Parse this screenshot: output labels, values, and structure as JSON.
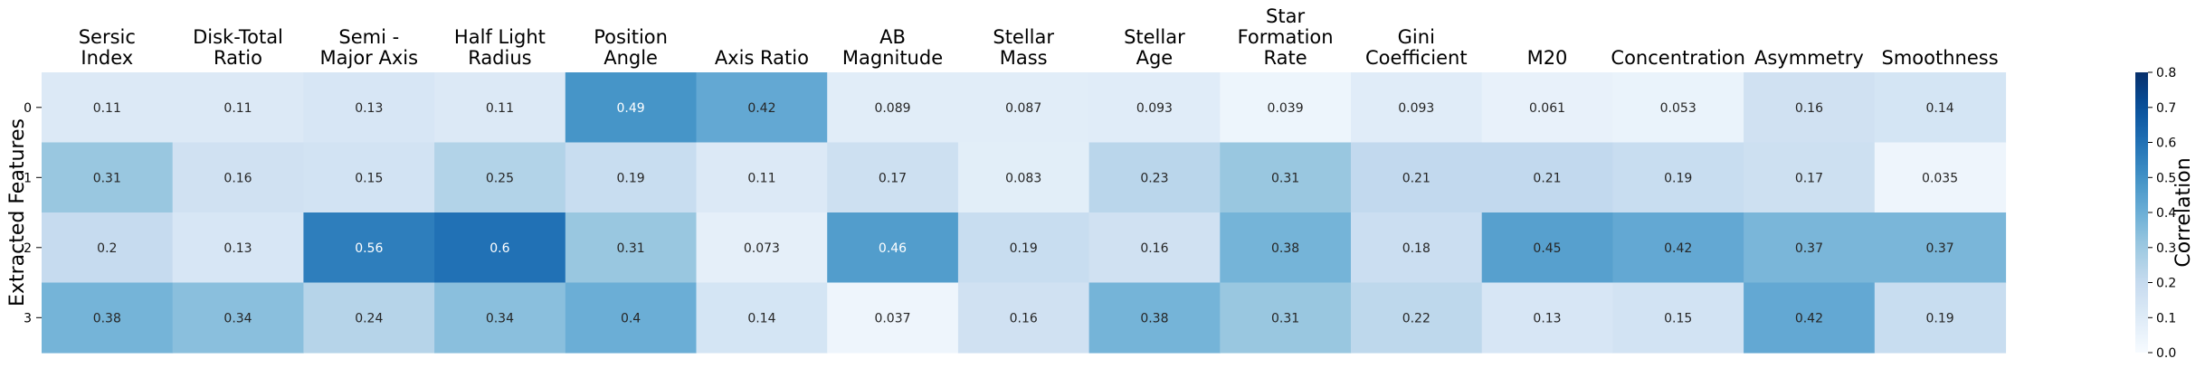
{
  "chart_data": {
    "type": "heatmap",
    "title": "",
    "xlabel": "",
    "ylabel": "Extracted Features",
    "columns": [
      [
        "Sersic",
        "Index"
      ],
      [
        "Disk-Total",
        "Ratio"
      ],
      [
        "Semi -",
        "Major Axis"
      ],
      [
        "Half Light",
        "Radius"
      ],
      [
        "Position",
        "Angle"
      ],
      [
        "Axis Ratio"
      ],
      [
        "AB",
        "Magnitude"
      ],
      [
        "Stellar",
        "Mass"
      ],
      [
        "Stellar",
        "Age"
      ],
      [
        "Star",
        "Formation",
        "Rate"
      ],
      [
        "Gini",
        "Coefficient"
      ],
      [
        "M20"
      ],
      [
        "Concentration"
      ],
      [
        "Asymmetry"
      ],
      [
        "Smoothness"
      ]
    ],
    "rows": [
      "0",
      "1",
      "2",
      "3"
    ],
    "values": [
      [
        "0.11",
        "0.11",
        "0.13",
        "0.11",
        "0.49",
        "0.42",
        "0.089",
        "0.087",
        "0.093",
        "0.039",
        "0.093",
        "0.061",
        "0.053",
        "0.16",
        "0.14"
      ],
      [
        "0.31",
        "0.16",
        "0.15",
        "0.25",
        "0.19",
        "0.11",
        "0.17",
        "0.083",
        "0.23",
        "0.31",
        "0.21",
        "0.21",
        "0.19",
        "0.17",
        "0.035"
      ],
      [
        "0.2",
        "0.13",
        "0.56",
        "0.6",
        "0.31",
        "0.073",
        "0.46",
        "0.19",
        "0.16",
        "0.38",
        "0.18",
        "0.45",
        "0.42",
        "0.37",
        "0.37"
      ],
      [
        "0.38",
        "0.34",
        "0.24",
        "0.34",
        "0.4",
        "0.14",
        "0.037",
        "0.16",
        "0.38",
        "0.31",
        "0.22",
        "0.13",
        "0.15",
        "0.42",
        "0.19"
      ]
    ],
    "colorbar": {
      "label": "Correlation",
      "range": [
        0.0,
        0.8
      ],
      "ticks": [
        "0.0",
        "0.1",
        "0.2",
        "0.3",
        "0.4",
        "0.5",
        "0.6",
        "0.7",
        "0.8"
      ]
    },
    "colormap": "Blues"
  }
}
